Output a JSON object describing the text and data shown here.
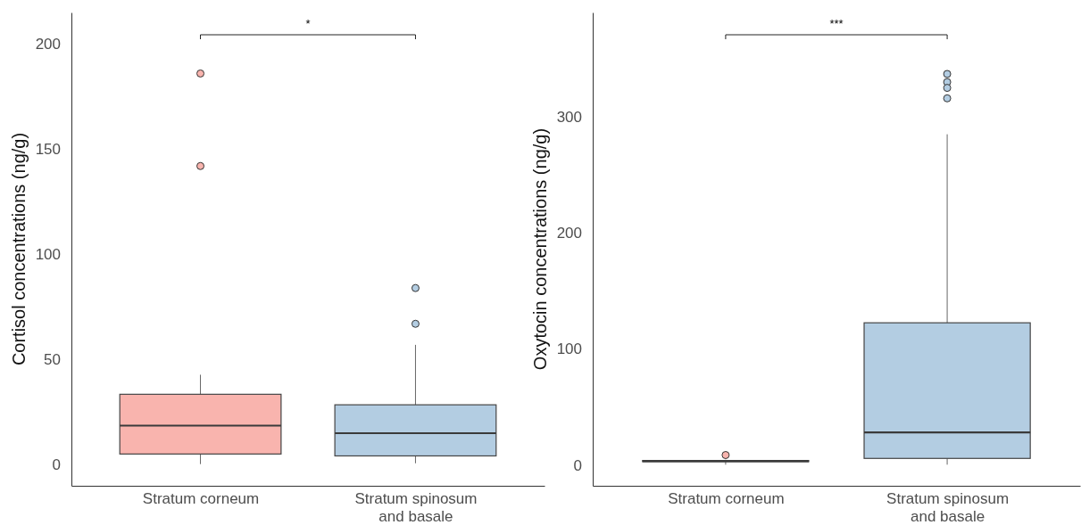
{
  "chart_data": [
    {
      "type": "box",
      "ylabel": "Cortisol concentrations (ng/g)",
      "categories": [
        "Stratum corneum",
        "Stratum spinosum\nand basale"
      ],
      "colors": [
        "#f9b4ae",
        "#b3cde2"
      ],
      "boxes": [
        {
          "low": 0.3,
          "q1": 5.1,
          "median": 18.6,
          "q3": 33.5,
          "high": 42.8,
          "outliers": [
            186,
            142
          ]
        },
        {
          "low": 0.7,
          "q1": 4.2,
          "median": 15,
          "q3": 28.5,
          "high": 57,
          "outliers": [
            84,
            67
          ]
        }
      ],
      "ylim": [
        -10,
        215
      ],
      "yticks": [
        0,
        50,
        100,
        150,
        200
      ],
      "grid": false,
      "annotations": [
        "*"
      ]
    },
    {
      "type": "box",
      "ylabel": "Oxytocin concentrations (ng/g)",
      "categories": [
        "Stratum corneum",
        "Stratum spinosum\nand basale"
      ],
      "colors": [
        "#f9b4ae",
        "#b3cde2"
      ],
      "boxes": [
        {
          "low": 0.2,
          "q1": 2.8,
          "median": 3.3,
          "q3": 3.8,
          "high": 4.5,
          "outliers": [
            8.5
          ]
        },
        {
          "low": 0.2,
          "q1": 5.6,
          "median": 28,
          "q3": 122.5,
          "high": 285,
          "outliers": [
            337,
            330,
            325,
            316
          ]
        }
      ],
      "ylim": [
        -18,
        390
      ],
      "yticks": [
        0,
        100,
        200,
        300
      ],
      "grid": false,
      "annotations": [
        "***"
      ]
    }
  ]
}
